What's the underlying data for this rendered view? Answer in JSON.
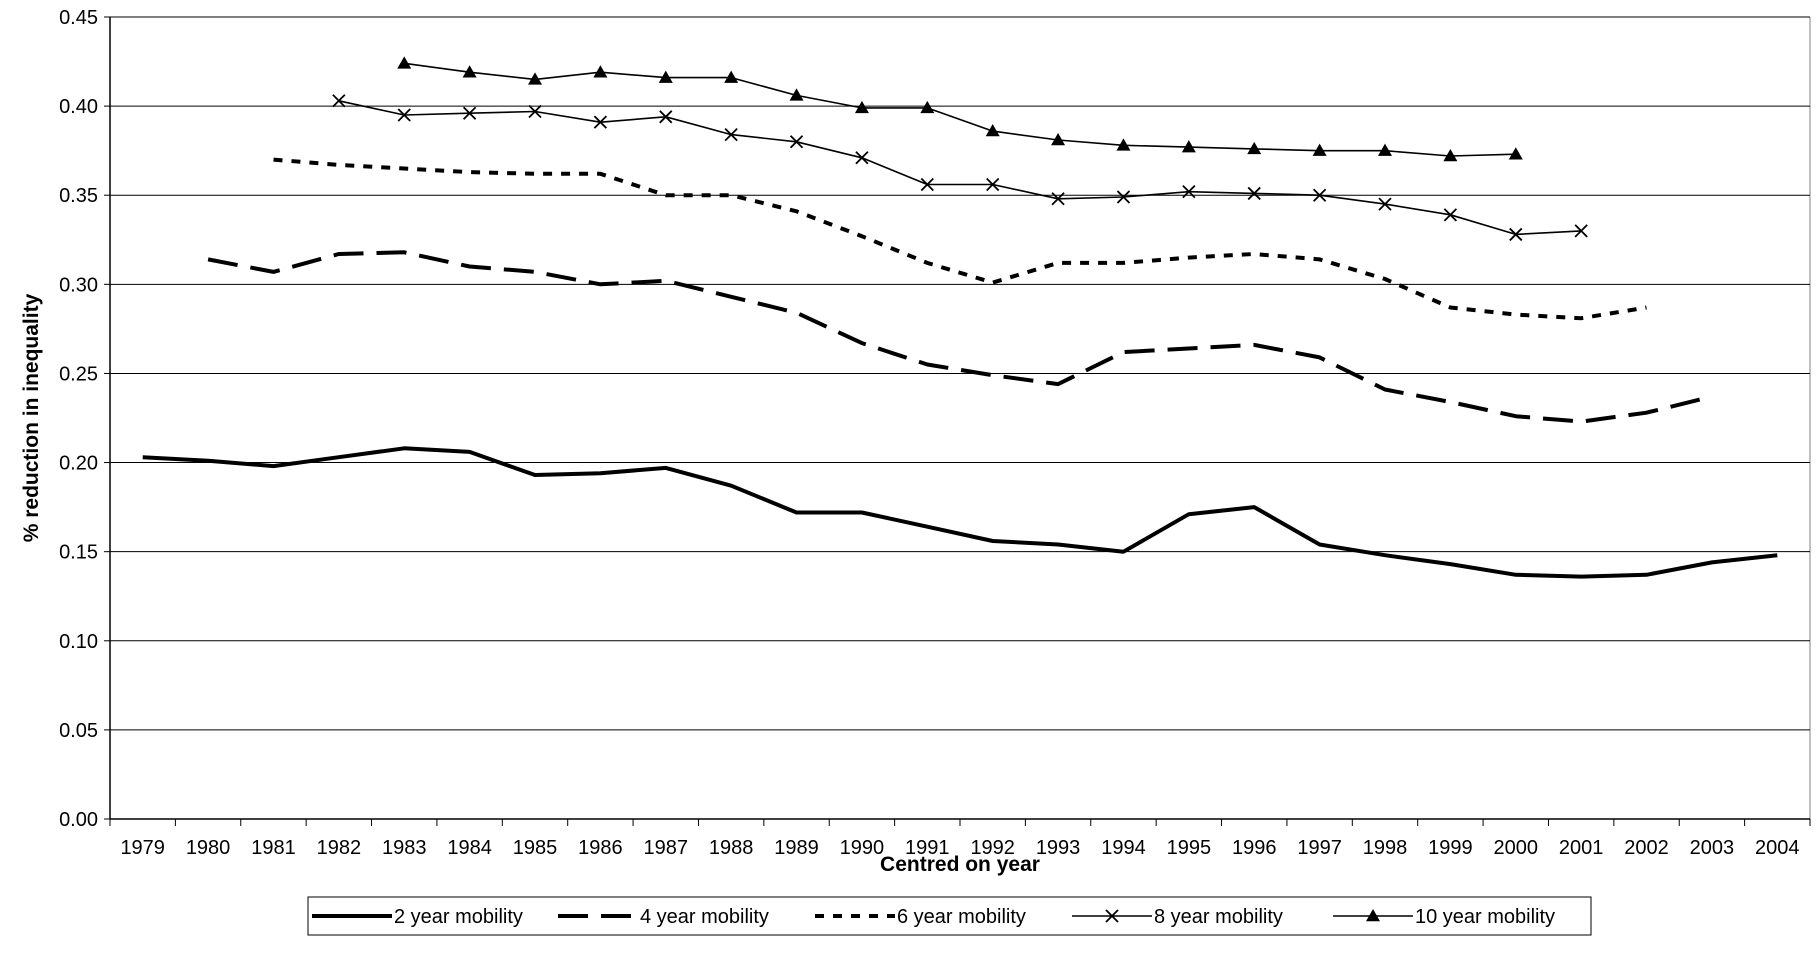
{
  "chart_data": {
    "type": "line",
    "title": "",
    "xlabel": "Centred on year",
    "ylabel": "% reduction in inequality",
    "ylim": [
      0,
      0.45
    ],
    "y_ticks": [
      "0.00",
      "0.05",
      "0.10",
      "0.15",
      "0.20",
      "0.25",
      "0.30",
      "0.35",
      "0.40",
      "0.45"
    ],
    "grid": "horizontal",
    "legend_position": "bottom",
    "categories": [
      "1979",
      "1980",
      "1981",
      "1982",
      "1983",
      "1984",
      "1985",
      "1986",
      "1987",
      "1988",
      "1989",
      "1990",
      "1991",
      "1992",
      "1993",
      "1994",
      "1995",
      "1996",
      "1997",
      "1998",
      "1999",
      "2000",
      "2001",
      "2002",
      "2003",
      "2004"
    ],
    "series": [
      {
        "name": "2 year mobility",
        "style": "solid-thick",
        "color": "#000000",
        "values": [
          0.203,
          0.201,
          0.198,
          0.203,
          0.208,
          0.206,
          0.193,
          0.194,
          0.197,
          0.187,
          0.172,
          0.172,
          0.164,
          0.156,
          0.154,
          0.15,
          0.171,
          0.175,
          0.154,
          0.148,
          0.143,
          0.137,
          0.136,
          0.137,
          0.144,
          0.148
        ]
      },
      {
        "name": "4 year mobility",
        "style": "long-dash",
        "color": "#000000",
        "values": [
          null,
          0.314,
          0.307,
          0.317,
          0.318,
          0.31,
          0.307,
          0.3,
          0.302,
          0.293,
          0.284,
          0.267,
          0.255,
          0.249,
          0.244,
          0.262,
          0.264,
          0.266,
          0.259,
          0.241,
          0.234,
          0.226,
          0.223,
          0.228,
          0.237,
          null
        ]
      },
      {
        "name": "6 year mobility",
        "style": "short-dash",
        "color": "#000000",
        "values": [
          null,
          null,
          0.37,
          0.367,
          0.365,
          0.363,
          0.362,
          0.362,
          0.35,
          0.35,
          0.341,
          0.327,
          0.312,
          0.301,
          0.312,
          0.312,
          0.315,
          0.317,
          0.314,
          0.303,
          0.287,
          0.283,
          0.281,
          0.287,
          null,
          null
        ]
      },
      {
        "name": "8 year mobility",
        "style": "x-markers",
        "color": "#000000",
        "values": [
          null,
          null,
          null,
          0.403,
          0.395,
          0.396,
          0.397,
          0.391,
          0.394,
          0.384,
          0.38,
          0.371,
          0.356,
          0.356,
          0.348,
          0.349,
          0.352,
          0.351,
          0.35,
          0.345,
          0.339,
          0.328,
          0.33,
          null,
          null,
          null
        ]
      },
      {
        "name": "10 year mobility",
        "style": "triangle-markers",
        "color": "#000000",
        "values": [
          null,
          null,
          null,
          null,
          0.424,
          0.419,
          0.415,
          0.419,
          0.416,
          0.416,
          0.406,
          0.399,
          0.399,
          0.386,
          0.381,
          0.378,
          0.377,
          0.376,
          0.375,
          0.375,
          0.372,
          0.373,
          null,
          null,
          null,
          null
        ]
      }
    ]
  }
}
